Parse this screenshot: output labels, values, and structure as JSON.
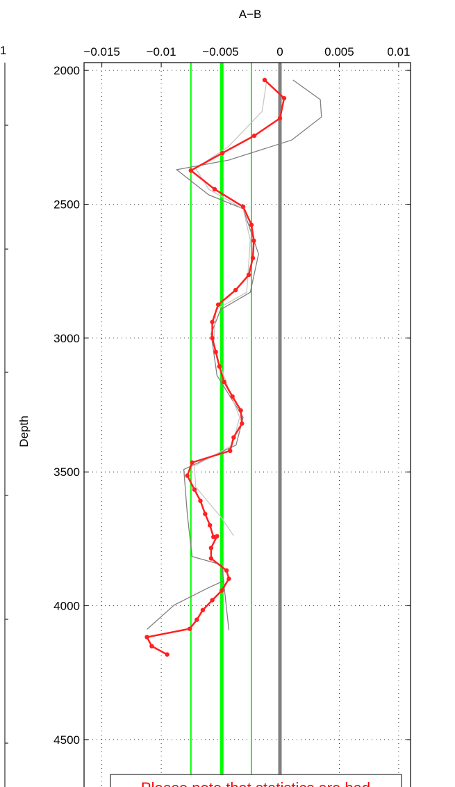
{
  "chart_data": {
    "type": "profile",
    "title": "A−B",
    "ylabel": "Depth",
    "left_panel_label": "1",
    "note": "Please note that statistics are bad",
    "xlim": [
      -0.0165,
      0.011
    ],
    "xticks": [
      {
        "value": -0.015,
        "label": "−0.015"
      },
      {
        "value": -0.01,
        "label": "−0.01"
      },
      {
        "value": -0.005,
        "label": "−0.005"
      },
      0,
      0.005,
      0.01
    ],
    "ylim": [
      1971,
      4677
    ],
    "yticks": [
      2000,
      2500,
      3000,
      3500,
      4000,
      4500
    ],
    "y_reversed": true,
    "grid": true,
    "vlines": [
      {
        "value": 0,
        "color": "#808080",
        "style": "thick"
      },
      {
        "value": -0.0049,
        "color": "#00ff00",
        "style": "thick"
      },
      {
        "value": -0.0075,
        "color": "#00ff00",
        "style": "thin"
      },
      {
        "value": -0.0024,
        "color": "#00ff00",
        "style": "thin"
      }
    ],
    "series": [
      {
        "color": "#808080",
        "markers": false,
        "values": [
          0.0011,
          0.0034,
          0.0035,
          0.001,
          -0.0043,
          -0.0087,
          -0.006,
          -0.0031,
          -0.0018,
          -0.0025,
          -0.005,
          -0.0058,
          -0.0053,
          -0.0031,
          -0.0037,
          -0.0081,
          -0.0078,
          -0.0074,
          -0.0049,
          -0.0043,
          null,
          -0.0112,
          -0.0089,
          -0.006,
          -0.0047
        ],
        "depth": [
          2036,
          2109,
          2174,
          2260,
          2335,
          2371,
          2465,
          2517,
          2686,
          2829,
          2894,
          2984,
          3140,
          3296,
          3400,
          3491,
          3660,
          3816,
          3847,
          4091,
          null,
          4088,
          3997,
          3932,
          3906
        ]
      },
      {
        "color": "#c8c8c8",
        "markers": false,
        "values": [
          -0.0011,
          -0.0015,
          -0.0043,
          -0.0071,
          -0.006,
          -0.0031,
          -0.0025,
          -0.0028,
          -0.0054,
          -0.0056,
          -0.0043,
          -0.0034,
          -0.004,
          -0.0072,
          -0.0071,
          -0.0049,
          -0.0039
        ],
        "depth": [
          2031,
          2153,
          2283,
          2366,
          2444,
          2517,
          2634,
          2829,
          2894,
          3036,
          3192,
          3296,
          3400,
          3478,
          3556,
          3673,
          3738
        ]
      },
      {
        "color": "#ff2020",
        "markers": true,
        "values": [
          -0.00129,
          0.00035,
          0,
          -0.00216,
          -0.00485,
          -0.0075,
          -0.0055,
          -0.0031,
          -0.0024,
          -0.0022,
          -0.00228,
          -0.00263,
          -0.00374,
          -0.0052,
          -0.0057,
          -0.0057,
          -0.0054,
          -0.0051,
          -0.0047,
          -0.004,
          -0.0033,
          -0.0032,
          -0.0039,
          -0.0042,
          -0.0074,
          -0.0078,
          -0.0072,
          -0.0067,
          -0.0063,
          -0.0059,
          -0.0056,
          -0.0053,
          -0.0058,
          -0.0058,
          -0.0045,
          -0.0043,
          -0.0049,
          -0.0057,
          -0.0065,
          -0.007,
          -0.0076,
          -0.0112,
          -0.0108,
          -0.0095
        ],
        "depth": [
          2036,
          2104,
          2179,
          2244,
          2309,
          2374,
          2444,
          2509,
          2577,
          2636,
          2701,
          2764,
          2821,
          2875,
          2940,
          3000,
          3052,
          3106,
          3164,
          3218,
          3270,
          3319,
          3371,
          3421,
          3465,
          3514,
          3566,
          3608,
          3657,
          3699,
          3743,
          3740,
          3784,
          3823,
          3868,
          3899,
          3943,
          3979,
          4016,
          4052,
          4086,
          4117,
          4151,
          4182
        ]
      }
    ]
  }
}
